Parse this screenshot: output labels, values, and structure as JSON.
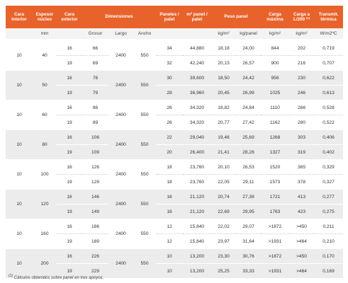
{
  "header": {
    "columns": [
      "Cara interior",
      "Espesor núcleo",
      "Cara exterior",
      "Dimensiones",
      "Paneles / palet",
      "m² panel / palet",
      "Peso panel",
      "Carga máxima",
      "Carga a L/200 ⁽¹⁾",
      "Transmit. térmica"
    ],
    "units": [
      "mm",
      "Grosor",
      "Largo",
      "Ancho",
      "kg/m²",
      "kg/panel",
      "kg/m²",
      "kg/m²",
      "W/m2ºC"
    ]
  },
  "groups": [
    {
      "cara_interior": "10",
      "espesor": "40",
      "largo": "2400",
      "ancho": "550",
      "rows": [
        [
          "16",
          "66",
          "34",
          "44,880",
          "18,18",
          "24,00",
          "844",
          "202",
          "0,719"
        ],
        [
          "19",
          "69",
          "32",
          "42,240",
          "20,13",
          "26,57",
          "900",
          "216",
          "0,707"
        ]
      ]
    },
    {
      "cara_interior": "10",
      "espesor": "50",
      "largo": "2400",
      "ancho": "550",
      "rows": [
        [
          "16",
          "76",
          "30",
          "39,600",
          "18,50",
          "24,42",
          "956",
          "230",
          "0,622"
        ],
        [
          "19",
          "79",
          "28",
          "36,960",
          "20,45",
          "26,99",
          "1025",
          "246",
          "0,613"
        ]
      ]
    },
    {
      "cara_interior": "10",
      "espesor": "60",
      "largo": "2400",
      "ancho": "550",
      "rows": [
        [
          "16",
          "86",
          "26",
          "34,320",
          "18,82",
          "24,84",
          "1110",
          "266",
          "0,528"
        ],
        [
          "19",
          "89",
          "26",
          "34,320",
          "20,77",
          "27,42",
          "1162",
          "280",
          "0,522"
        ]
      ]
    },
    {
      "cara_interior": "10",
      "espesor": "80",
      "largo": "2400",
      "ancho": "550",
      "rows": [
        [
          "16",
          "106",
          "22",
          "29,040",
          "19,46",
          "25,69",
          "1268",
          "303",
          "0,406"
        ],
        [
          "19",
          "109",
          "20",
          "26,400",
          "21,41",
          "28,26",
          "1327",
          "319",
          "0,402"
        ]
      ]
    },
    {
      "cara_interior": "10",
      "espesor": "100",
      "largo": "2400",
      "ancho": "550",
      "rows": [
        [
          "16",
          "126",
          "18",
          "23,760",
          "20,10",
          "26,53",
          "1520",
          "365",
          "0,329"
        ],
        [
          "19",
          "129",
          "18",
          "23,760",
          "22,05",
          "29,11",
          "1573",
          "378",
          "0,327"
        ]
      ]
    },
    {
      "cara_interior": "10",
      "espesor": "120",
      "largo": "2400",
      "ancho": "550",
      "rows": [
        [
          "16",
          "146",
          "16",
          "21,120",
          "20,74",
          "27,38",
          "1721",
          "413",
          "0,277"
        ],
        [
          "19",
          "149",
          "16",
          "21,120",
          "22,69",
          "29,95",
          "1763",
          "423",
          "0,275"
        ]
      ]
    },
    {
      "cara_interior": "10",
      "espesor": "160",
      "largo": "2400",
      "ancho": "550",
      "rows": [
        [
          "16",
          "186",
          "12",
          "15,840",
          "22,02",
          "29,07",
          ">1872",
          ">450",
          "0,211"
        ],
        [
          "19",
          "189",
          "12",
          "15,840",
          "23,97",
          "31,64",
          ">1931",
          ">464",
          "0,210"
        ]
      ]
    },
    {
      "cara_interior": "10",
      "espesor": "200",
      "largo": "2400",
      "ancho": "550",
      "rows": [
        [
          "16",
          "226",
          "10",
          "13,200",
          "23,30",
          "30,76",
          ">1872",
          ">450",
          "0,170"
        ],
        [
          "19",
          "229",
          "10",
          "13,200",
          "25,25",
          "33,33",
          ">1931",
          ">464",
          "0,169"
        ]
      ]
    }
  ],
  "footnote": {
    "marker": "(1)",
    "text": "Cálculos obtenidos sobre panel en tres apoyos."
  }
}
